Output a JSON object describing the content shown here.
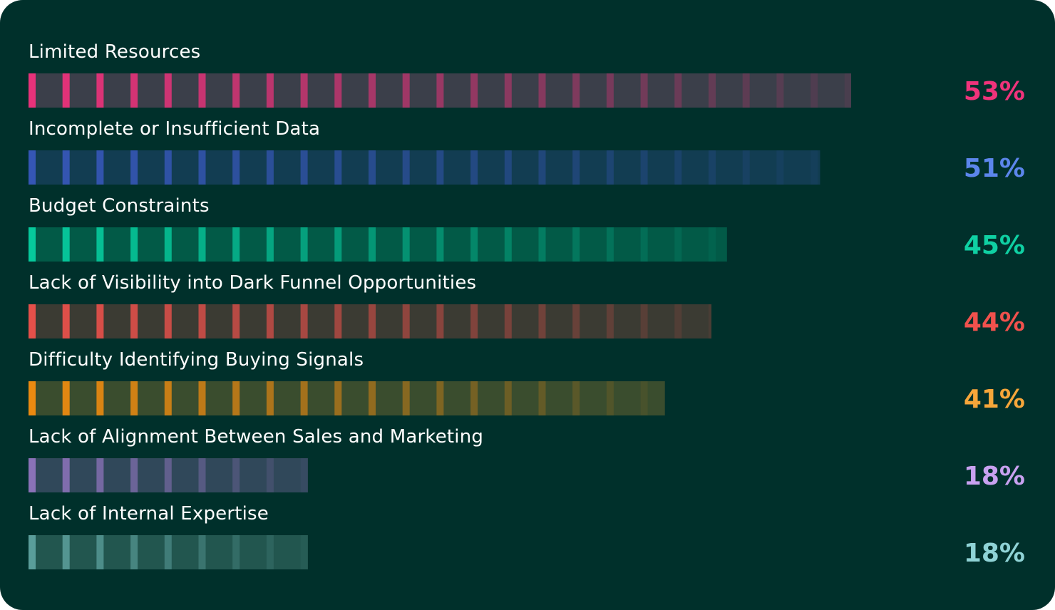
{
  "chart_data": {
    "type": "bar",
    "orientation": "horizontal",
    "title": "",
    "xlabel": "",
    "ylabel": "",
    "xlim": [
      0,
      60
    ],
    "grid": false,
    "legend": "none",
    "categories": [
      "Limited Resources",
      "Incomplete or Insufficient Data",
      "Budget Constraints",
      "Lack of Visibility into Dark Funnel Opportunities",
      "Difficulty Identifying  Buying Signals",
      "Lack of Alignment Between Sales and  Marketing",
      "Lack of Internal  Expertise"
    ],
    "values": [
      53,
      51,
      45,
      44,
      41,
      18,
      18
    ],
    "value_labels": [
      "53%",
      "51%",
      "45%",
      "44%",
      "41%",
      "18%",
      "18%"
    ],
    "colors": [
      {
        "accent": "#e8327a",
        "track": "#3b3f4a",
        "label": "#f0337b"
      },
      {
        "accent": "#3556b5",
        "track": "#123d52",
        "label": "#5c86ec"
      },
      {
        "accent": "#06c99c",
        "track": "#025a47",
        "label": "#0fd0a3"
      },
      {
        "accent": "#e6504a",
        "track": "#3b3b33",
        "label": "#f0514d"
      },
      {
        "accent": "#eb8a10",
        "track": "#3a4d2e",
        "label": "#f6a63a"
      },
      {
        "accent": "#8a72b8",
        "track": "#30485a",
        "label": "#c8a1f0"
      },
      {
        "accent": "#5a9d9a",
        "track": "#22564f",
        "label": "#8fd3d6"
      }
    ]
  }
}
